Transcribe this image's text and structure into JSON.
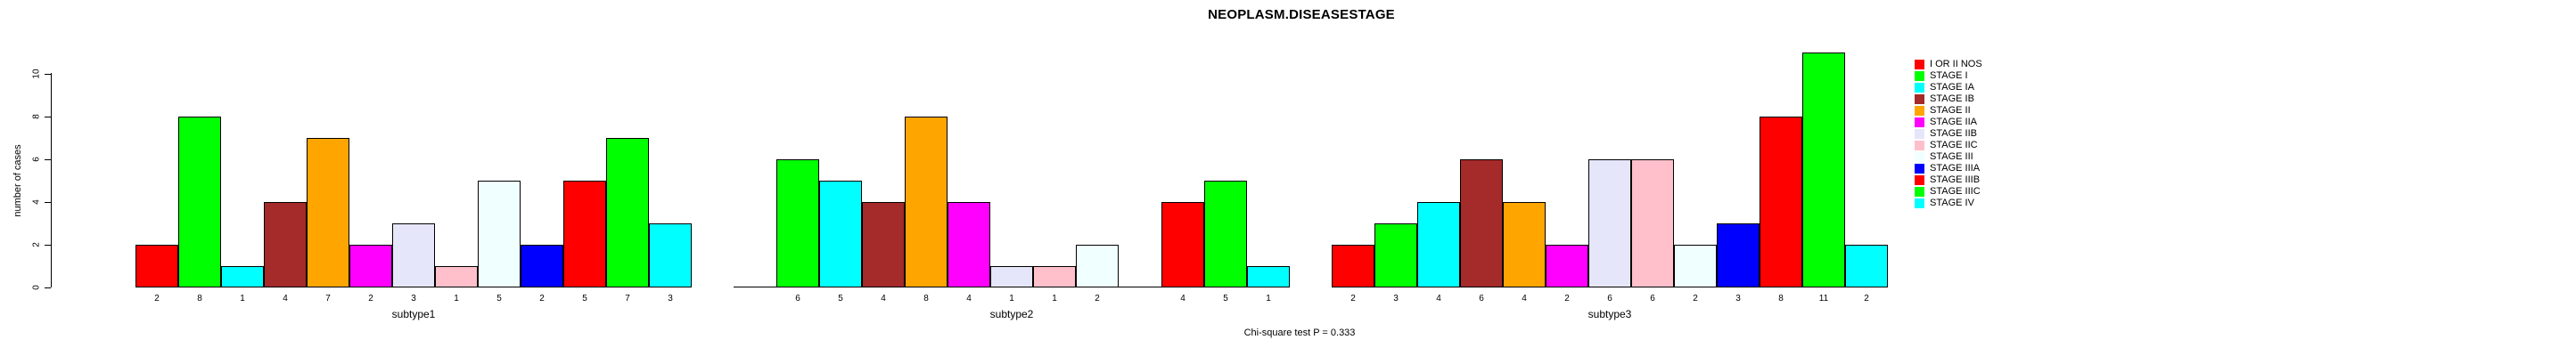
{
  "chart": {
    "title": "NEOPLASM.DISEASESTAGE",
    "ylabel": "number of cases",
    "footer": "Chi-square test P = 0.333"
  },
  "chart_data": {
    "type": "bar",
    "title": "NEOPLASM.DISEASESTAGE",
    "xlabel": "",
    "ylabel": "number of cases",
    "annotation": "Chi-square test P = 0.333",
    "ylim": [
      0,
      10
    ],
    "yticks": [
      0,
      2,
      4,
      6,
      8,
      10
    ],
    "grid": false,
    "legend_position": "right",
    "bar_value_labels": true,
    "categories": [
      "subtype1",
      "subtype2",
      "subtype3"
    ],
    "series": [
      {
        "name": "I OR II NOS",
        "color": "#FF0000",
        "values": [
          2,
          0,
          2
        ]
      },
      {
        "name": "STAGE I",
        "color": "#00FF00",
        "values": [
          8,
          6,
          3
        ]
      },
      {
        "name": "STAGE IA",
        "color": "#00FFFF",
        "values": [
          1,
          5,
          4
        ]
      },
      {
        "name": "STAGE IB",
        "color": "#A52A2A",
        "values": [
          4,
          4,
          6
        ]
      },
      {
        "name": "STAGE II",
        "color": "#FFA500",
        "values": [
          7,
          8,
          4
        ]
      },
      {
        "name": "STAGE IIA",
        "color": "#FF00FF",
        "values": [
          2,
          4,
          2
        ]
      },
      {
        "name": "STAGE IIB",
        "color": "#E6E6FA",
        "values": [
          3,
          1,
          6
        ]
      },
      {
        "name": "STAGE IIC",
        "color": "#FFC0CB",
        "values": [
          1,
          1,
          6
        ]
      },
      {
        "name": "STAGE III",
        "color": "#F0FFFF",
        "values": [
          5,
          2,
          2
        ]
      },
      {
        "name": "STAGE IIIA",
        "color": "#0000FF",
        "values": [
          2,
          0,
          3
        ]
      },
      {
        "name": "STAGE IIIB",
        "color": "#FF0000",
        "values": [
          5,
          4,
          8
        ]
      },
      {
        "name": "STAGE IIIC",
        "color": "#00FF00",
        "values": [
          7,
          5,
          11
        ]
      },
      {
        "name": "STAGE IV",
        "color": "#00FFFF",
        "values": [
          3,
          1,
          2
        ]
      }
    ]
  }
}
